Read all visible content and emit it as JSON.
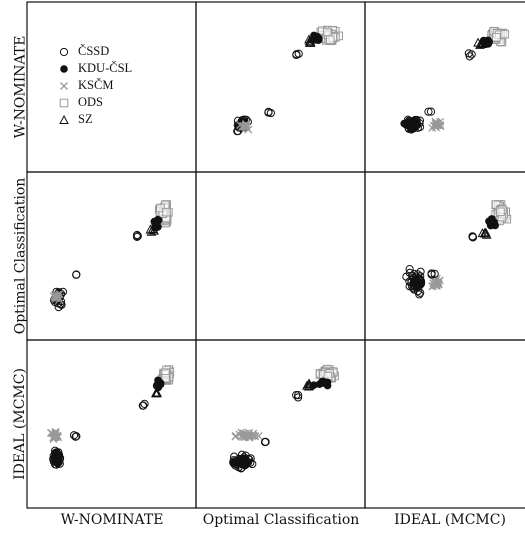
{
  "chart_data": {
    "type": "scatter",
    "kind": "scatterplot-matrix",
    "variables": [
      "W-NOMINATE",
      "Optimal Classification",
      "IDEAL (MCMC)"
    ],
    "legend_position": "top-left panel",
    "series": [
      {
        "name": "ČSSD",
        "marker": "open-circle",
        "color": "#111111"
      },
      {
        "name": "KDU-ČSL",
        "marker": "filled-circle",
        "color": "#111111"
      },
      {
        "name": "KSČM",
        "marker": "x",
        "color": "#999999"
      },
      {
        "name": "ODS",
        "marker": "open-square",
        "color": "#999999"
      },
      {
        "name": "SZ",
        "marker": "open-triangle",
        "color": "#111111"
      }
    ],
    "panels": [
      {
        "row": 0,
        "col": 1,
        "y_var": "W-NOMINATE",
        "x_var": "Optimal Classification",
        "clusters": [
          {
            "series": "ČSSD",
            "n": 30,
            "center": [
              -0.62,
              -0.6
            ],
            "spread": [
              0.12,
              0.07
            ],
            "trend": 0.45
          },
          {
            "series": "KSČM",
            "n": 14,
            "center": [
              -0.58,
              -0.63
            ],
            "spread": [
              0.06,
              0.04
            ]
          },
          {
            "series": "ODS",
            "n": 45,
            "center": [
              0.78,
              0.82
            ],
            "spread": [
              0.1,
              0.07
            ]
          },
          {
            "series": "KDU-ČSL",
            "n": 10,
            "center": [
              0.6,
              0.74
            ],
            "spread": [
              0.08,
              0.06
            ]
          },
          {
            "series": "SZ",
            "n": 5,
            "center": [
              0.46,
              0.7
            ],
            "spread": [
              0.05,
              0.05
            ]
          },
          {
            "series": "ČSSD",
            "n": 3,
            "center": [
              0.28,
              0.52
            ],
            "spread": [
              0.05,
              0.02
            ]
          },
          {
            "series": "ČSSD",
            "n": 3,
            "center": [
              -0.2,
              -0.4
            ],
            "spread": [
              0.04,
              0.03
            ]
          }
        ]
      },
      {
        "row": 0,
        "col": 2,
        "y_var": "W-NOMINATE",
        "x_var": "IDEAL (MCMC)",
        "clusters": [
          {
            "series": "ČSSD",
            "n": 40,
            "center": [
              -0.6,
              -0.58
            ],
            "spread": [
              0.1,
              0.06
            ]
          },
          {
            "series": "KDU-ČSL",
            "n": 12,
            "center": [
              -0.62,
              -0.6
            ],
            "spread": [
              0.08,
              0.05
            ]
          },
          {
            "series": "KSČM",
            "n": 18,
            "center": [
              -0.2,
              -0.6
            ],
            "spread": [
              0.07,
              0.05
            ]
          },
          {
            "series": "ODS",
            "n": 40,
            "center": [
              0.78,
              0.82
            ],
            "spread": [
              0.09,
              0.07
            ]
          },
          {
            "series": "KDU-ČSL",
            "n": 10,
            "center": [
              0.6,
              0.72
            ],
            "spread": [
              0.06,
              0.05
            ]
          },
          {
            "series": "SZ",
            "n": 5,
            "center": [
              0.5,
              0.68
            ],
            "spread": [
              0.04,
              0.04
            ]
          },
          {
            "series": "ČSSD",
            "n": 3,
            "center": [
              0.33,
              0.52
            ],
            "spread": [
              0.04,
              0.03
            ]
          },
          {
            "series": "ČSSD",
            "n": 2,
            "center": [
              -0.3,
              -0.4
            ],
            "spread": [
              0.04,
              0.02
            ]
          }
        ]
      },
      {
        "row": 1,
        "col": 0,
        "y_var": "Optimal Classification",
        "x_var": "W-NOMINATE",
        "clusters": [
          {
            "series": "ČSSD",
            "n": 30,
            "center": [
              -0.85,
              -0.68
            ],
            "spread": [
              0.05,
              0.12
            ]
          },
          {
            "series": "KSČM",
            "n": 14,
            "center": [
              -0.88,
              -0.66
            ],
            "spread": [
              0.04,
              0.06
            ]
          },
          {
            "series": "ODS",
            "n": 45,
            "center": [
              0.85,
              0.68
            ],
            "spread": [
              0.06,
              0.12
            ]
          },
          {
            "series": "KDU-ČSL",
            "n": 10,
            "center": [
              0.72,
              0.56
            ],
            "spread": [
              0.05,
              0.1
            ]
          },
          {
            "series": "SZ",
            "n": 5,
            "center": [
              0.65,
              0.4
            ],
            "spread": [
              0.04,
              0.04
            ]
          },
          {
            "series": "ČSSD",
            "n": 3,
            "center": [
              0.43,
              0.32
            ],
            "spread": [
              0.02,
              0.05
            ]
          },
          {
            "series": "ČSSD",
            "n": 2,
            "center": [
              -0.55,
              -0.3
            ],
            "spread": [
              0.03,
              0.03
            ]
          }
        ]
      },
      {
        "row": 1,
        "col": 2,
        "y_var": "Optimal Classification",
        "x_var": "IDEAL (MCMC)",
        "clusters": [
          {
            "series": "ČSSD",
            "n": 45,
            "center": [
              -0.55,
              -0.42
            ],
            "spread": [
              0.1,
              0.14
            ]
          },
          {
            "series": "KDU-ČSL",
            "n": 12,
            "center": [
              -0.52,
              -0.45
            ],
            "spread": [
              0.06,
              0.08
            ]
          },
          {
            "series": "KSČM",
            "n": 18,
            "center": [
              -0.22,
              -0.45
            ],
            "spread": [
              0.06,
              0.07
            ]
          },
          {
            "series": "ODS",
            "n": 45,
            "center": [
              0.82,
              0.68
            ],
            "spread": [
              0.08,
              0.12
            ]
          },
          {
            "series": "KDU-ČSL",
            "n": 10,
            "center": [
              0.7,
              0.58
            ],
            "spread": [
              0.06,
              0.1
            ]
          },
          {
            "series": "SZ",
            "n": 5,
            "center": [
              0.58,
              0.35
            ],
            "spread": [
              0.04,
              0.04
            ]
          },
          {
            "series": "ČSSD",
            "n": 3,
            "center": [
              0.38,
              0.3
            ],
            "spread": [
              0.03,
              0.04
            ]
          },
          {
            "series": "ČSSD",
            "n": 3,
            "center": [
              -0.25,
              -0.28
            ],
            "spread": [
              0.04,
              0.03
            ]
          }
        ]
      },
      {
        "row": 2,
        "col": 0,
        "y_var": "IDEAL (MCMC)",
        "x_var": "W-NOMINATE",
        "clusters": [
          {
            "series": "ČSSD",
            "n": 40,
            "center": [
              -0.88,
              -0.55
            ],
            "spread": [
              0.05,
              0.1
            ]
          },
          {
            "series": "KDU-ČSL",
            "n": 12,
            "center": [
              -0.86,
              -0.58
            ],
            "spread": [
              0.04,
              0.07
            ]
          },
          {
            "series": "KSČM",
            "n": 18,
            "center": [
              -0.9,
              -0.2
            ],
            "spread": [
              0.05,
              0.06
            ]
          },
          {
            "series": "ODS",
            "n": 40,
            "center": [
              0.88,
              0.78
            ],
            "spread": [
              0.05,
              0.08
            ]
          },
          {
            "series": "KDU-ČSL",
            "n": 10,
            "center": [
              0.76,
              0.62
            ],
            "spread": [
              0.05,
              0.06
            ]
          },
          {
            "series": "SZ",
            "n": 5,
            "center": [
              0.72,
              0.5
            ],
            "spread": [
              0.03,
              0.04
            ]
          },
          {
            "series": "ČSSD",
            "n": 3,
            "center": [
              0.55,
              0.3
            ],
            "spread": [
              0.04,
              0.03
            ]
          },
          {
            "series": "ČSSD",
            "n": 3,
            "center": [
              -0.55,
              -0.2
            ],
            "spread": [
              0.05,
              0.04
            ]
          }
        ]
      },
      {
        "row": 2,
        "col": 1,
        "y_var": "IDEAL (MCMC)",
        "x_var": "Optimal Classification",
        "clusters": [
          {
            "series": "ČSSD",
            "n": 45,
            "center": [
              -0.62,
              -0.6
            ],
            "spread": [
              0.12,
              0.08
            ]
          },
          {
            "series": "KDU-ČSL",
            "n": 12,
            "center": [
              -0.65,
              -0.62
            ],
            "spread": [
              0.08,
              0.05
            ]
          },
          {
            "series": "KSČM",
            "n": 25,
            "center": [
              -0.55,
              -0.18
            ],
            "spread": [
              0.14,
              0.04
            ]
          },
          {
            "series": "ODS",
            "n": 45,
            "center": [
              0.75,
              0.82
            ],
            "spread": [
              0.1,
              0.07
            ]
          },
          {
            "series": "KDU-ČSL",
            "n": 10,
            "center": [
              0.68,
              0.65
            ],
            "spread": [
              0.1,
              0.05
            ]
          },
          {
            "series": "SZ",
            "n": 5,
            "center": [
              0.44,
              0.62
            ],
            "spread": [
              0.04,
              0.04
            ]
          },
          {
            "series": "ČSSD",
            "n": 3,
            "center": [
              0.3,
              0.45
            ],
            "spread": [
              0.04,
              0.03
            ]
          },
          {
            "series": "ČSSD",
            "n": 3,
            "center": [
              -0.25,
              -0.3
            ],
            "spread": [
              0.03,
              0.03
            ]
          }
        ]
      }
    ],
    "xlim": [
      -1.1,
      1.1
    ],
    "ylim": [
      -1.1,
      1.1
    ],
    "grid": false
  }
}
